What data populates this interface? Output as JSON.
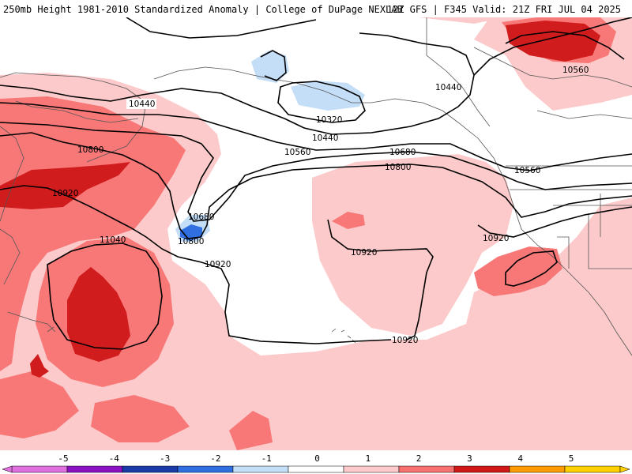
{
  "header": {
    "left": "250mb Height 1981-2010 Standardized Anomaly | College of DuPage NEXLAB",
    "right": "12Z GFS | F345 Valid: 21Z FRI JUL 04 2025"
  },
  "contour_labels": [
    "10440",
    "10320",
    "10440",
    "10560",
    "10680",
    "10800",
    "10560",
    "10440",
    "10800",
    "10920",
    "10680",
    "10800",
    "10920",
    "11040",
    "10920",
    "10920",
    "10920",
    "10560"
  ],
  "colorbar": {
    "ticks": [
      "-5",
      "-4",
      "-3",
      "-2",
      "-1",
      "0",
      "1",
      "2",
      "3",
      "4",
      "5"
    ],
    "colors": [
      "#e070e0",
      "#8a12c0",
      "#1a3aa8",
      "#2f6fe0",
      "#c4def8",
      "#ffffff",
      "#fccaca",
      "#f87070",
      "#d01818",
      "#ff9a00",
      "#ffd000"
    ]
  },
  "colors": {
    "pos1": "#fccaca",
    "pos2": "#f87878",
    "pos3": "#d01c1c",
    "neg1": "#c4def8",
    "neg3": "#2f6fe0",
    "contour": "#000000",
    "coast": "#555555"
  }
}
